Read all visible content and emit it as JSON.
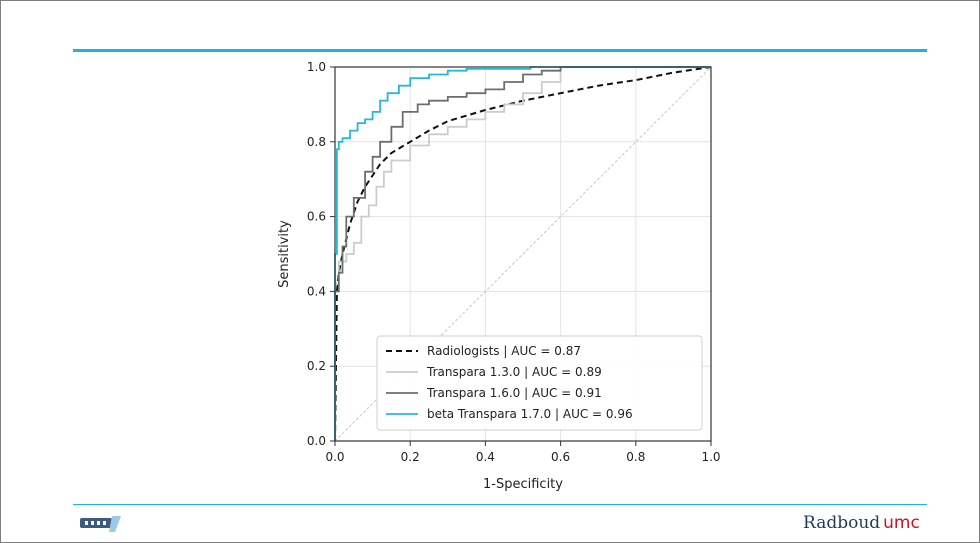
{
  "footer": {
    "brand_name": "Radboud",
    "brand_suffix": "umc",
    "left_logo_icon": "dxt-logo-icon"
  },
  "colors": {
    "accent_rule": "#24b0dc",
    "radiologists": "#111111",
    "transpara_130": "#cccccc",
    "transpara_160": "#6e6e6e",
    "beta_transpara_170": "#2ab6da"
  },
  "chart_data": {
    "type": "line",
    "xlabel": "1-Specificity",
    "ylabel": "Sensitivity",
    "xlim": [
      0,
      1
    ],
    "ylim": [
      0,
      1
    ],
    "xticks": [
      "0.0",
      "0.2",
      "0.4",
      "0.6",
      "0.8",
      "1.0"
    ],
    "yticks": [
      "0.0",
      "0.2",
      "0.4",
      "0.6",
      "0.8",
      "1.0"
    ],
    "grid": true,
    "legend_position": "bottom-right",
    "diagonal_reference": true,
    "series": [
      {
        "name": "Radiologists | AUC = 0.87",
        "style": "dashed",
        "color": "#111111",
        "x": [
          0,
          0.005,
          0.01,
          0.02,
          0.03,
          0.04,
          0.06,
          0.08,
          0.1,
          0.12,
          0.15,
          0.2,
          0.25,
          0.3,
          0.35,
          0.4,
          0.5,
          0.6,
          0.7,
          0.8,
          0.9,
          1.0
        ],
        "y": [
          0,
          0.4,
          0.45,
          0.5,
          0.54,
          0.58,
          0.64,
          0.68,
          0.71,
          0.74,
          0.77,
          0.8,
          0.83,
          0.855,
          0.87,
          0.885,
          0.91,
          0.93,
          0.95,
          0.965,
          0.985,
          1.0
        ]
      },
      {
        "name": "Transpara 1.3.0 | AUC = 0.89",
        "style": "solid",
        "color": "#cccccc",
        "x": [
          0,
          0,
          0.01,
          0.01,
          0.03,
          0.03,
          0.05,
          0.05,
          0.07,
          0.07,
          0.09,
          0.09,
          0.11,
          0.11,
          0.13,
          0.13,
          0.15,
          0.15,
          0.2,
          0.2,
          0.25,
          0.25,
          0.3,
          0.3,
          0.35,
          0.35,
          0.4,
          0.4,
          0.45,
          0.45,
          0.5,
          0.5,
          0.55,
          0.55,
          0.6,
          0.6,
          1.0
        ],
        "y": [
          0,
          0.42,
          0.42,
          0.48,
          0.48,
          0.5,
          0.5,
          0.53,
          0.53,
          0.6,
          0.6,
          0.63,
          0.63,
          0.68,
          0.68,
          0.72,
          0.72,
          0.75,
          0.75,
          0.79,
          0.79,
          0.82,
          0.82,
          0.84,
          0.84,
          0.86,
          0.86,
          0.88,
          0.88,
          0.9,
          0.9,
          0.93,
          0.93,
          0.96,
          0.96,
          1.0,
          1.0
        ]
      },
      {
        "name": "Transpara 1.6.0 | AUC = 0.91",
        "style": "solid",
        "color": "#6e6e6e",
        "x": [
          0,
          0,
          0.01,
          0.01,
          0.02,
          0.02,
          0.03,
          0.03,
          0.05,
          0.05,
          0.08,
          0.08,
          0.1,
          0.1,
          0.12,
          0.12,
          0.15,
          0.15,
          0.18,
          0.18,
          0.22,
          0.22,
          0.25,
          0.25,
          0.3,
          0.3,
          0.35,
          0.35,
          0.4,
          0.4,
          0.45,
          0.45,
          0.5,
          0.5,
          0.55,
          0.55,
          0.6,
          0.6,
          1.0
        ],
        "y": [
          0,
          0.4,
          0.4,
          0.45,
          0.45,
          0.52,
          0.52,
          0.6,
          0.6,
          0.65,
          0.65,
          0.72,
          0.72,
          0.76,
          0.76,
          0.8,
          0.8,
          0.84,
          0.84,
          0.88,
          0.88,
          0.9,
          0.9,
          0.91,
          0.91,
          0.92,
          0.92,
          0.93,
          0.93,
          0.94,
          0.94,
          0.96,
          0.96,
          0.98,
          0.98,
          0.99,
          0.99,
          1.0,
          1.0
        ]
      },
      {
        "name": "beta Transpara 1.7.0 | AUC = 0.96",
        "style": "solid",
        "color": "#2ab6da",
        "x": [
          0,
          0,
          0.005,
          0.005,
          0.01,
          0.01,
          0.02,
          0.02,
          0.04,
          0.04,
          0.06,
          0.06,
          0.08,
          0.08,
          0.1,
          0.1,
          0.12,
          0.12,
          0.14,
          0.14,
          0.17,
          0.17,
          0.2,
          0.2,
          0.25,
          0.25,
          0.3,
          0.3,
          0.35,
          0.35,
          0.52,
          0.52,
          1.0
        ],
        "y": [
          0,
          0.5,
          0.5,
          0.78,
          0.78,
          0.8,
          0.8,
          0.81,
          0.81,
          0.83,
          0.83,
          0.85,
          0.85,
          0.86,
          0.86,
          0.88,
          0.88,
          0.91,
          0.91,
          0.93,
          0.93,
          0.95,
          0.95,
          0.97,
          0.97,
          0.98,
          0.98,
          0.99,
          0.99,
          0.995,
          0.995,
          1.0,
          1.0
        ]
      }
    ]
  }
}
